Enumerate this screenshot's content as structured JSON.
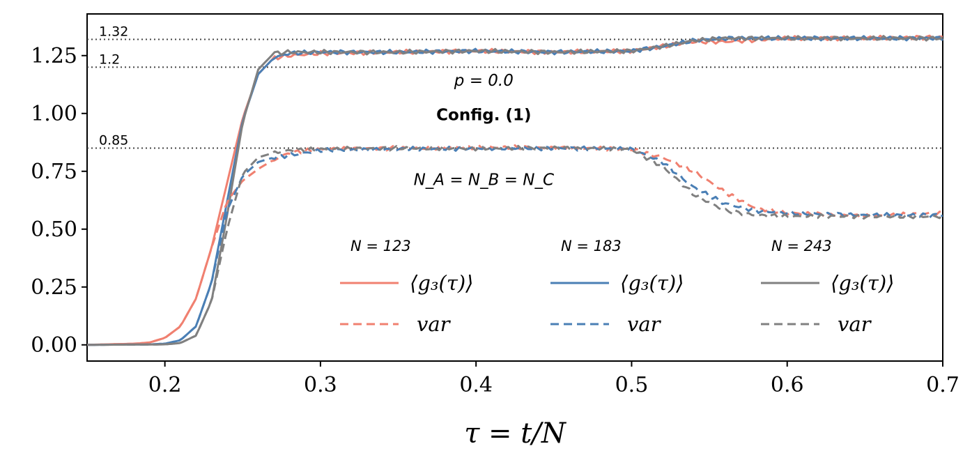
{
  "chart_data": {
    "type": "line",
    "xlabel": "τ = t/N",
    "ylabel": "",
    "xlim": [
      0.15,
      0.7
    ],
    "ylim": [
      -0.07,
      1.43
    ],
    "x_ticks": [
      0.2,
      0.3,
      0.4,
      0.5,
      0.6,
      0.7
    ],
    "x_tick_labels": [
      "0.2",
      "0.3",
      "0.4",
      "0.5",
      "0.6",
      "0.7"
    ],
    "y_ticks": [
      0.0,
      0.25,
      0.5,
      0.75,
      1.0,
      1.25
    ],
    "y_tick_labels": [
      "0.00",
      "0.25",
      "0.50",
      "0.75",
      "1.00",
      "1.25"
    ],
    "grid": false,
    "reference_lines": [
      {
        "y": 1.32,
        "label": "1.32"
      },
      {
        "y": 1.2,
        "label": "1.2"
      },
      {
        "y": 0.85,
        "label": "0.85"
      }
    ],
    "annotations": [
      {
        "text": "p = 0.0",
        "x": 0.405,
        "y": 1.12,
        "style": "italic"
      },
      {
        "text": "Config. (1)",
        "x": 0.405,
        "y": 0.97,
        "style": "bold"
      },
      {
        "text": "N_A = N_B = N_C",
        "x": 0.405,
        "y": 0.69,
        "style": "italic"
      }
    ],
    "legend": {
      "placement": "lower-right",
      "columns": [
        {
          "title": "N = 123",
          "color": "#f08070",
          "solid_label": "⟨g₃(τ)⟩",
          "dashed_label": "var"
        },
        {
          "title": "N = 183",
          "color": "#4a7fb5",
          "solid_label": "⟨g₃(τ)⟩",
          "dashed_label": "var"
        },
        {
          "title": "N = 243",
          "color": "#808080",
          "solid_label": "⟨g₃(τ)⟩",
          "dashed_label": "var"
        }
      ]
    },
    "series": [
      {
        "name": "⟨g3(τ)⟩ N=123",
        "color": "#f08070",
        "style": "solid",
        "x": [
          0.15,
          0.18,
          0.19,
          0.2,
          0.21,
          0.22,
          0.23,
          0.24,
          0.25,
          0.26,
          0.27,
          0.28,
          0.3,
          0.35,
          0.4,
          0.45,
          0.5,
          0.52,
          0.54,
          0.56,
          0.6,
          0.65,
          0.7
        ],
        "y": [
          0.0,
          0.005,
          0.01,
          0.03,
          0.08,
          0.2,
          0.42,
          0.7,
          0.98,
          1.17,
          1.24,
          1.25,
          1.26,
          1.265,
          1.27,
          1.265,
          1.27,
          1.29,
          1.31,
          1.31,
          1.325,
          1.325,
          1.33
        ]
      },
      {
        "name": "⟨g3(τ)⟩ N=183",
        "color": "#4a7fb5",
        "style": "solid",
        "x": [
          0.15,
          0.19,
          0.2,
          0.21,
          0.22,
          0.23,
          0.24,
          0.25,
          0.26,
          0.27,
          0.28,
          0.3,
          0.35,
          0.4,
          0.45,
          0.5,
          0.52,
          0.54,
          0.56,
          0.6,
          0.65,
          0.7
        ],
        "y": [
          0.0,
          0.002,
          0.005,
          0.02,
          0.08,
          0.27,
          0.62,
          0.97,
          1.17,
          1.24,
          1.26,
          1.265,
          1.265,
          1.27,
          1.265,
          1.27,
          1.29,
          1.315,
          1.325,
          1.325,
          1.325,
          1.325
        ]
      },
      {
        "name": "⟨g3(τ)⟩ N=243",
        "color": "#808080",
        "style": "solid",
        "x": [
          0.15,
          0.2,
          0.21,
          0.22,
          0.23,
          0.24,
          0.25,
          0.26,
          0.27,
          0.28,
          0.3,
          0.35,
          0.4,
          0.45,
          0.5,
          0.52,
          0.54,
          0.56,
          0.6,
          0.65,
          0.7
        ],
        "y": [
          0.0,
          0.002,
          0.008,
          0.04,
          0.19,
          0.56,
          0.96,
          1.19,
          1.26,
          1.265,
          1.265,
          1.265,
          1.27,
          1.265,
          1.27,
          1.29,
          1.315,
          1.325,
          1.325,
          1.325,
          1.325
        ]
      },
      {
        "name": "var N=123",
        "color": "#f08070",
        "style": "dashed",
        "x": [
          0.15,
          0.18,
          0.19,
          0.2,
          0.21,
          0.22,
          0.23,
          0.24,
          0.25,
          0.26,
          0.27,
          0.28,
          0.3,
          0.35,
          0.4,
          0.45,
          0.5,
          0.52,
          0.54,
          0.56,
          0.58,
          0.6,
          0.65,
          0.7
        ],
        "y": [
          0.0,
          0.005,
          0.01,
          0.03,
          0.08,
          0.2,
          0.42,
          0.62,
          0.71,
          0.76,
          0.8,
          0.83,
          0.845,
          0.85,
          0.855,
          0.85,
          0.845,
          0.81,
          0.75,
          0.66,
          0.59,
          0.57,
          0.555,
          0.57
        ]
      },
      {
        "name": "var N=183",
        "color": "#4a7fb5",
        "style": "dashed",
        "x": [
          0.15,
          0.19,
          0.2,
          0.21,
          0.22,
          0.23,
          0.24,
          0.25,
          0.26,
          0.27,
          0.28,
          0.3,
          0.35,
          0.4,
          0.45,
          0.5,
          0.52,
          0.54,
          0.56,
          0.58,
          0.6,
          0.65,
          0.7
        ],
        "y": [
          0.0,
          0.002,
          0.005,
          0.02,
          0.08,
          0.27,
          0.58,
          0.73,
          0.79,
          0.81,
          0.82,
          0.84,
          0.845,
          0.85,
          0.85,
          0.845,
          0.79,
          0.68,
          0.61,
          0.58,
          0.57,
          0.56,
          0.56
        ]
      },
      {
        "name": "var N=243",
        "color": "#808080",
        "style": "dashed",
        "x": [
          0.15,
          0.2,
          0.21,
          0.22,
          0.23,
          0.24,
          0.25,
          0.26,
          0.27,
          0.28,
          0.3,
          0.35,
          0.4,
          0.45,
          0.5,
          0.52,
          0.54,
          0.56,
          0.58,
          0.6,
          0.65,
          0.7
        ],
        "y": [
          0.0,
          0.002,
          0.008,
          0.04,
          0.19,
          0.5,
          0.74,
          0.81,
          0.83,
          0.84,
          0.845,
          0.85,
          0.85,
          0.85,
          0.845,
          0.77,
          0.65,
          0.58,
          0.56,
          0.555,
          0.555,
          0.555
        ]
      }
    ]
  }
}
